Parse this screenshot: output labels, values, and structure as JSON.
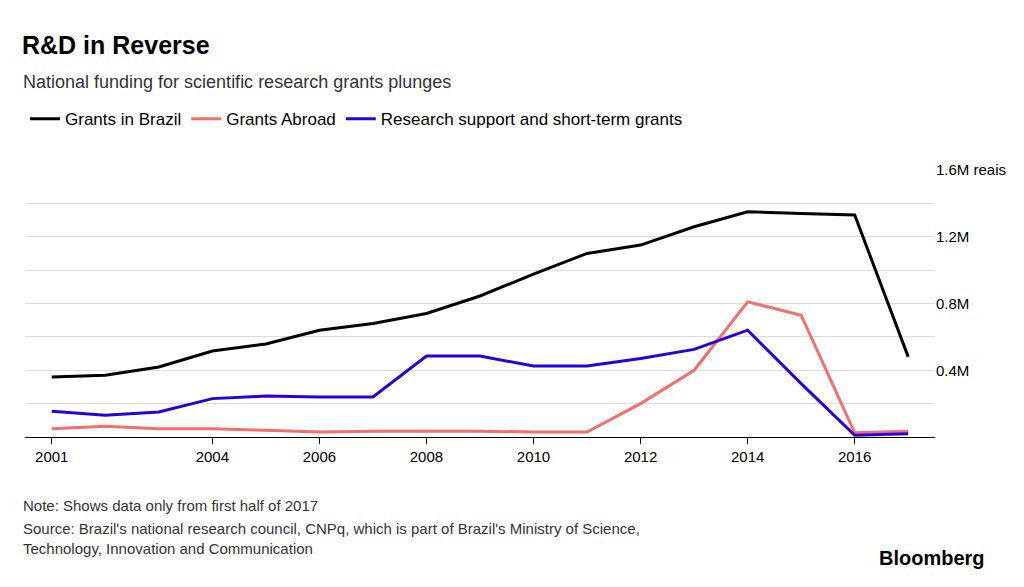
{
  "chart_data": {
    "type": "line",
    "title": "R&D in Reverse",
    "subtitle": "National funding for scientific research grants plunges",
    "note": "Note: Shows data only from first half of 2017",
    "source": "Source: Brazil's national research council, CNPq, which is part of Brazil's Ministry of Science, Technology, Innovation and Communication",
    "brand": "Bloomberg",
    "x": [
      2001,
      2002,
      2003,
      2004,
      2005,
      2006,
      2007,
      2008,
      2009,
      2010,
      2011,
      2012,
      2013,
      2014,
      2015,
      2016,
      2017
    ],
    "series": [
      {
        "name": "Grants in Brazil",
        "color": "#000000",
        "values": [
          360000,
          370000,
          420000,
          515000,
          557000,
          640000,
          680000,
          740000,
          845000,
          976000,
          1100000,
          1150000,
          1260000,
          1350000,
          1340000,
          1330000,
          480000
        ]
      },
      {
        "name": "Grants Abroad",
        "color": "#f56e6e",
        "values": [
          50000,
          65000,
          50000,
          50000,
          40000,
          30000,
          35000,
          35000,
          35000,
          30000,
          30000,
          200000,
          400000,
          810000,
          730000,
          25000,
          35000
        ]
      },
      {
        "name": "Research support and short-term grants",
        "color": "#2b00d8",
        "values": [
          155000,
          130000,
          150000,
          230000,
          245000,
          240000,
          240000,
          485000,
          485000,
          425000,
          425000,
          470000,
          525000,
          640000,
          320000,
          10000,
          20000
        ]
      }
    ],
    "xlim": [
      2000.5,
      2017.5
    ],
    "xticks": [
      2001,
      2004,
      2006,
      2008,
      2010,
      2012,
      2014,
      2016
    ],
    "ylim": [
      0,
      1600000
    ],
    "yticks": [
      {
        "value": 400000,
        "label": "0.4M"
      },
      {
        "value": 800000,
        "label": "0.8M"
      },
      {
        "value": 1200000,
        "label": "1.2M"
      },
      {
        "value": 1600000,
        "label": "1.6M reais"
      }
    ],
    "grid": true,
    "legend": "top left"
  }
}
